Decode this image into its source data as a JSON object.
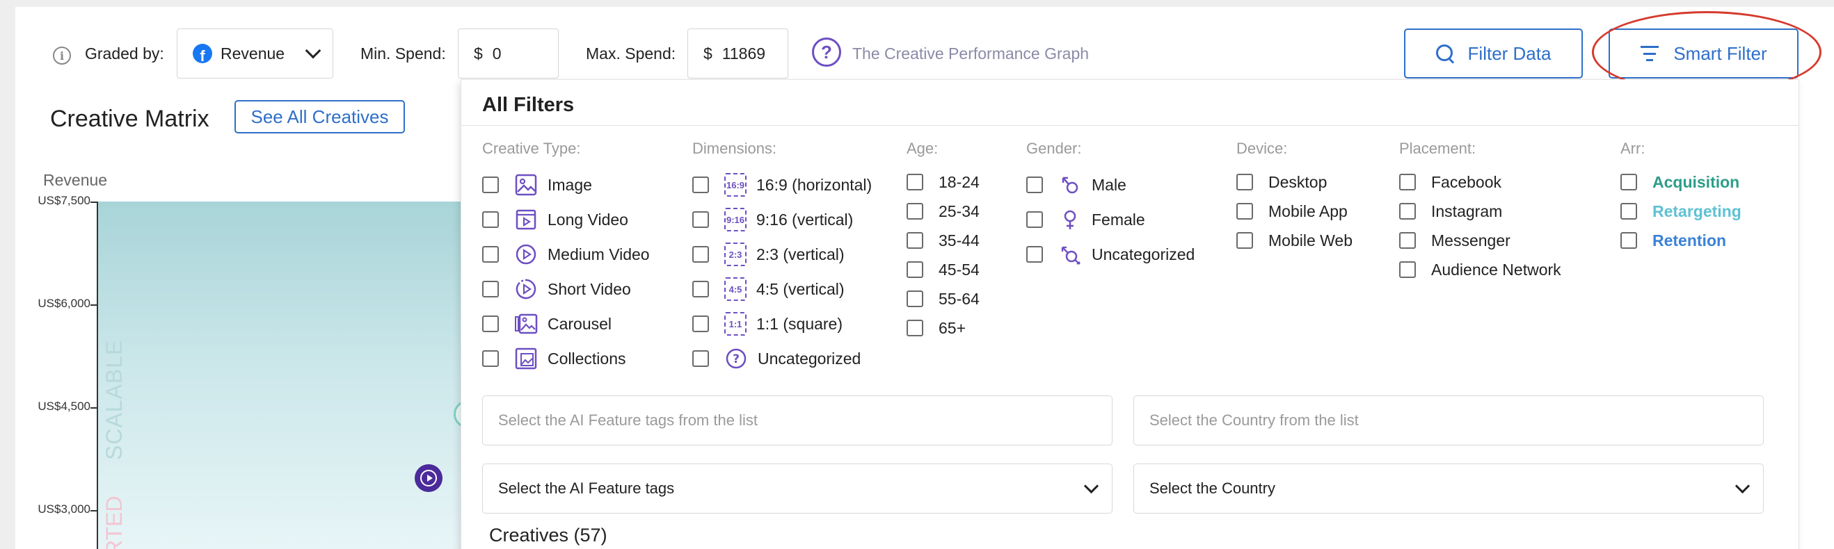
{
  "topbar": {
    "graded_by_label": "Graded by:",
    "graded_by_value": "Revenue",
    "min_spend_label": "Min. Spend:",
    "min_spend_currency": "$",
    "min_spend_value": "0",
    "max_spend_label": "Max. Spend:",
    "max_spend_currency": "$",
    "max_spend_value": "11869",
    "graph_link": "The Creative Performance Graph",
    "filter_data_label": "Filter Data",
    "smart_filter_label": "Smart Filter"
  },
  "matrix": {
    "title": "Creative Matrix",
    "see_all_label": "See All Creatives",
    "y_title": "Revenue",
    "y_ticks": [
      "US$7,500",
      "US$6,000",
      "US$4,500",
      "US$3,000"
    ],
    "quadrant_labels": [
      "SCALABLE",
      "RTED"
    ]
  },
  "filters": {
    "title": "All Filters",
    "creative_type": {
      "title": "Creative Type:",
      "options": [
        "Image",
        "Long Video",
        "Medium Video",
        "Short Video",
        "Carousel",
        "Collections"
      ]
    },
    "dimensions": {
      "title": "Dimensions:",
      "tags": [
        "16:9",
        "9:16",
        "2:3",
        "4:5",
        "1:1"
      ],
      "options": [
        "16:9 (horizontal)",
        "9:16 (vertical)",
        "2:3 (vertical)",
        "4:5 (vertical)",
        "1:1 (square)",
        "Uncategorized"
      ]
    },
    "age": {
      "title": "Age:",
      "options": [
        "18-24",
        "25-34",
        "35-44",
        "45-54",
        "55-64",
        "65+"
      ]
    },
    "gender": {
      "title": "Gender:",
      "options": [
        "Male",
        "Female",
        "Uncategorized"
      ]
    },
    "device": {
      "title": "Device:",
      "options": [
        "Desktop",
        "Mobile App",
        "Mobile Web"
      ]
    },
    "placement": {
      "title": "Placement:",
      "options": [
        "Facebook",
        "Instagram",
        "Messenger",
        "Audience Network"
      ]
    },
    "arr": {
      "title": "Arr:",
      "options": [
        "Acquisition",
        "Retargeting",
        "Retention"
      ]
    },
    "ai_tags_search_placeholder": "Select the AI Feature tags from the list",
    "country_search_placeholder": "Select the Country from the list",
    "ai_tags_select": "Select the AI Feature tags",
    "country_select": "Select the Country",
    "creatives_count_label": "Creatives (57)"
  },
  "colors": {
    "accent_blue": "#2e6fc9",
    "accent_purple": "#6d4fc2",
    "highlight_red": "#d63a2e",
    "arr_acquisition": "#2c9e88",
    "arr_retargeting": "#5ec2d3",
    "arr_retention": "#3a82d6"
  }
}
